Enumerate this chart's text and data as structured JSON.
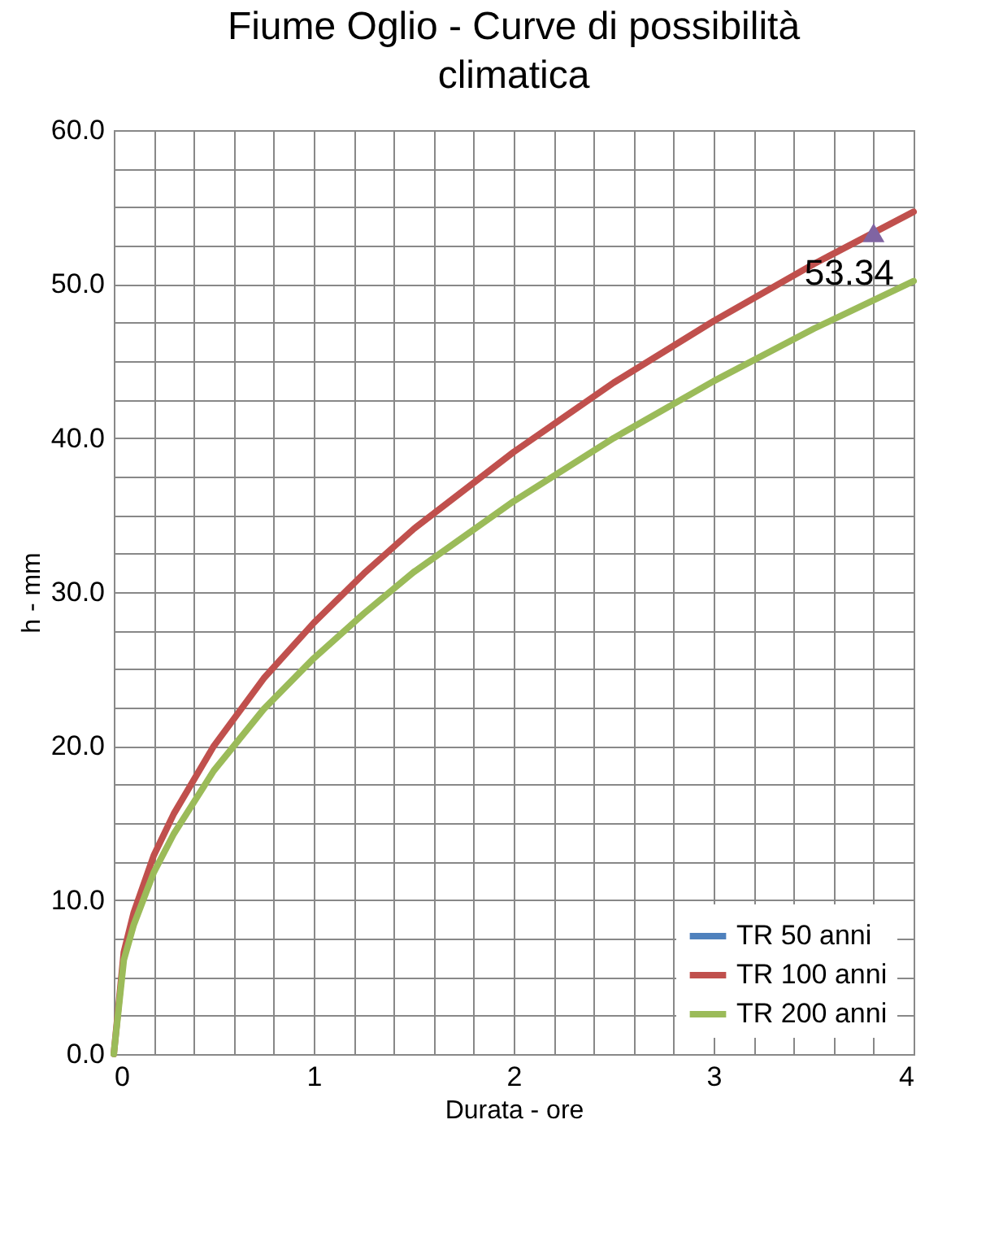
{
  "chart_data": {
    "type": "line",
    "title": "Fiume Oglio - Curve di possibilità climatica",
    "xlabel": "Durata - ore",
    "ylabel": "h - mm",
    "x": [
      0,
      0.05,
      0.1,
      0.2,
      0.3,
      0.5,
      0.75,
      1,
      1.25,
      1.5,
      2,
      2.5,
      3,
      3.5,
      4
    ],
    "series": [
      {
        "name": "TR 50 anni",
        "color": "#4f81bd",
        "values": [
          null,
          null,
          null,
          null,
          null,
          null,
          null,
          null,
          null,
          null,
          null,
          null,
          null,
          null,
          null
        ]
      },
      {
        "name": "TR 100 anni",
        "color": "#c0504d",
        "values": [
          0,
          6.6,
          9.2,
          12.9,
          15.6,
          20.0,
          24.4,
          28.0,
          31.2,
          34.1,
          39.1,
          43.6,
          47.6,
          51.3,
          54.7
        ]
      },
      {
        "name": "TR 200 anni",
        "color": "#9bbb59",
        "values": [
          0,
          6.1,
          8.4,
          11.8,
          14.3,
          18.4,
          22.4,
          25.7,
          28.6,
          31.3,
          35.9,
          40.0,
          43.7,
          47.1,
          50.2
        ]
      },
      {
        "type": "scatter",
        "color": "#8064a2",
        "marker": "triangle",
        "x": [
          3.8
        ],
        "values": [
          53.34
        ],
        "value_labels": [
          "53.34"
        ]
      }
    ],
    "xlim": [
      0,
      4
    ],
    "ylim": [
      0,
      60
    ],
    "xticks": [
      0,
      {
        "value": 0.2,
        "label": null
      },
      {
        "value": 0.4,
        "label": null
      },
      {
        "value": 0.6,
        "label": null
      },
      {
        "value": 0.8,
        "label": null
      },
      1,
      {
        "value": 1.2,
        "label": null
      },
      {
        "value": 1.4,
        "label": null
      },
      {
        "value": 1.6,
        "label": null
      },
      {
        "value": 1.8,
        "label": null
      },
      2,
      {
        "value": 2.2,
        "label": null
      },
      {
        "value": 2.4,
        "label": null
      },
      {
        "value": 2.6,
        "label": null
      },
      {
        "value": 2.8,
        "label": null
      },
      3,
      {
        "value": 3.2,
        "label": null
      },
      {
        "value": 3.4,
        "label": null
      },
      {
        "value": 3.6,
        "label": null
      },
      {
        "value": 3.8,
        "label": null
      },
      4
    ],
    "yticks": [
      {
        "value": 0,
        "label": "0.0"
      },
      {
        "value": 2.5,
        "label": null
      },
      {
        "value": 5,
        "label": null
      },
      {
        "value": 7.5,
        "label": null
      },
      {
        "value": 10,
        "label": "10.0"
      },
      {
        "value": 12.5,
        "label": null
      },
      {
        "value": 15,
        "label": null
      },
      {
        "value": 17.5,
        "label": null
      },
      {
        "value": 20,
        "label": "20.0"
      },
      {
        "value": 22.5,
        "label": null
      },
      {
        "value": 25,
        "label": null
      },
      {
        "value": 27.5,
        "label": null
      },
      {
        "value": 30,
        "label": "30.0"
      },
      {
        "value": 32.5,
        "label": null
      },
      {
        "value": 35,
        "label": null
      },
      {
        "value": 37.5,
        "label": null
      },
      {
        "value": 40,
        "label": "40.0"
      },
      {
        "value": 42.5,
        "label": null
      },
      {
        "value": 45,
        "label": null
      },
      {
        "value": 47.5,
        "label": null
      },
      {
        "value": 50,
        "label": "50.0"
      },
      {
        "value": 52.5,
        "label": null
      },
      {
        "value": 55,
        "label": null
      },
      {
        "value": 57.5,
        "label": null
      },
      {
        "value": 60,
        "label": "60.0"
      }
    ],
    "grid": true,
    "legend": "bottom right",
    "marker": "none",
    "line_style": "solid"
  }
}
